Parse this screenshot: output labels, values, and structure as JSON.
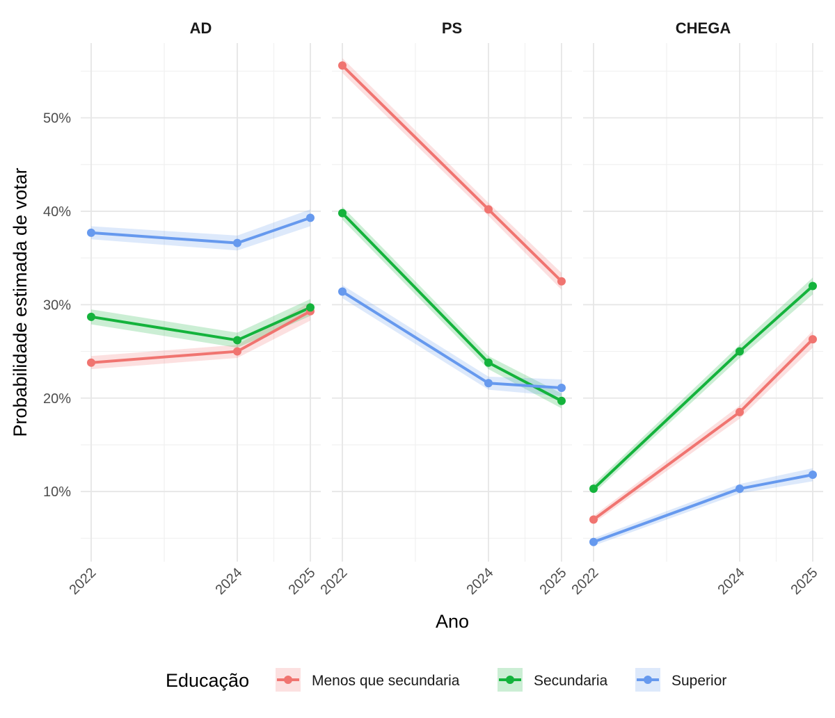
{
  "chart_data": {
    "type": "line",
    "facets": [
      "AD",
      "PS",
      "CHEGA"
    ],
    "x": [
      2022,
      2024,
      2025
    ],
    "x_ticks": [
      "2022",
      "2024",
      "2025"
    ],
    "xlabel": "Ano",
    "ylabel": "Probabilidade estimada de votar",
    "y_ticks": [
      "10%",
      "20%",
      "30%",
      "40%",
      "50%"
    ],
    "y_tick_values": [
      10,
      20,
      30,
      40,
      50
    ],
    "ylim": [
      2.5,
      58
    ],
    "xlim": [
      2022,
      2025
    ],
    "grid": true,
    "legend": {
      "title": "Educação",
      "position": "bottom",
      "entries": [
        "Menos que secundaria",
        "Secundaria",
        "Superior"
      ]
    },
    "colors": {
      "Menos que secundaria": "#F07470",
      "Secundaria": "#14B33C",
      "Superior": "#6699EE"
    },
    "panels": [
      {
        "facet": "AD",
        "series": [
          {
            "name": "Menos que secundaria",
            "values": [
              23.8,
              25.0,
              29.3
            ],
            "ci": [
              [
                23.1,
                24.5
              ],
              [
                24.3,
                25.7
              ],
              [
                28.3,
                30.3
              ]
            ]
          },
          {
            "name": "Secundaria",
            "values": [
              28.7,
              26.2,
              29.7
            ],
            "ci": [
              [
                27.9,
                29.5
              ],
              [
                25.4,
                27.0
              ],
              [
                28.8,
                30.6
              ]
            ]
          },
          {
            "name": "Superior",
            "values": [
              37.7,
              36.6,
              39.3
            ],
            "ci": [
              [
                37.0,
                38.4
              ],
              [
                35.8,
                37.4
              ],
              [
                38.4,
                40.2
              ]
            ]
          }
        ]
      },
      {
        "facet": "PS",
        "series": [
          {
            "name": "Menos que secundaria",
            "values": [
              55.6,
              40.2,
              32.5
            ],
            "ci": [
              [
                54.8,
                56.4
              ],
              [
                39.5,
                40.9
              ],
              [
                31.6,
                33.4
              ]
            ]
          },
          {
            "name": "Secundaria",
            "values": [
              39.8,
              23.8,
              19.7
            ],
            "ci": [
              [
                39.1,
                40.5
              ],
              [
                23.1,
                24.5
              ],
              [
                18.9,
                20.5
              ]
            ]
          },
          {
            "name": "Superior",
            "values": [
              31.4,
              21.6,
              21.1
            ],
            "ci": [
              [
                30.7,
                32.1
              ],
              [
                20.9,
                22.3
              ],
              [
                20.2,
                22.0
              ]
            ]
          }
        ]
      },
      {
        "facet": "CHEGA",
        "series": [
          {
            "name": "Menos que secundaria",
            "values": [
              7.0,
              18.5,
              26.3
            ],
            "ci": [
              [
                6.6,
                7.4
              ],
              [
                17.8,
                19.2
              ],
              [
                25.4,
                27.2
              ]
            ]
          },
          {
            "name": "Secundaria",
            "values": [
              10.3,
              25.0,
              32.0
            ],
            "ci": [
              [
                9.8,
                10.8
              ],
              [
                24.3,
                25.7
              ],
              [
                31.1,
                32.9
              ]
            ]
          },
          {
            "name": "Superior",
            "values": [
              4.6,
              10.3,
              11.8
            ],
            "ci": [
              [
                4.2,
                5.0
              ],
              [
                9.8,
                10.8
              ],
              [
                11.1,
                12.5
              ]
            ]
          }
        ]
      }
    ]
  }
}
